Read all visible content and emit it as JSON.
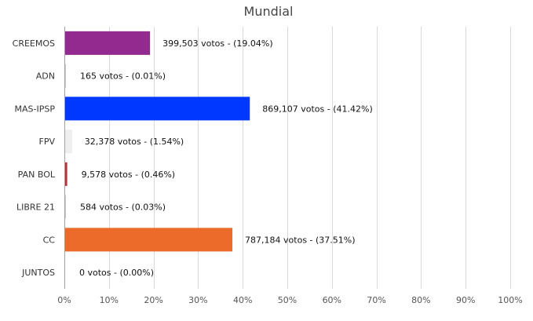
{
  "chart_data": {
    "type": "bar",
    "orientation": "horizontal",
    "title": "Mundial",
    "xlabel": "",
    "ylabel": "",
    "xlim": [
      0,
      100
    ],
    "ticks": [
      "0%",
      "10%",
      "20%",
      "30%",
      "40%",
      "50%",
      "60%",
      "70%",
      "80%",
      "90%",
      "100%"
    ],
    "tick_values": [
      0,
      10,
      20,
      30,
      40,
      50,
      60,
      70,
      80,
      90,
      100
    ],
    "grid": true,
    "legend": "none",
    "categories": [
      "CREEMOS",
      "ADN",
      "MAS-IPSP",
      "FPV",
      "PAN BOL",
      "LIBRE 21",
      "CC",
      "JUNTOS"
    ],
    "values": [
      19.04,
      0.01,
      41.42,
      1.54,
      0.46,
      0.03,
      37.51,
      0.0
    ],
    "labels": [
      "399,503 votos - (19.04%)",
      "165 votos - (0.01%)",
      "869,107 votos - (41.42%)",
      "32,378 votos - (1.54%)",
      "9,578 votos - (0.46%)",
      "584 votos - (0.03%)",
      "787,184 votos - (37.51%)",
      "0 votos - (0.00%)"
    ],
    "colors": [
      "#932a8f",
      "#cccccc",
      "#0038ff",
      "#eeeeee",
      "#c0303a",
      "#cccccc",
      "#ec6a2a",
      "#cccccc"
    ]
  }
}
